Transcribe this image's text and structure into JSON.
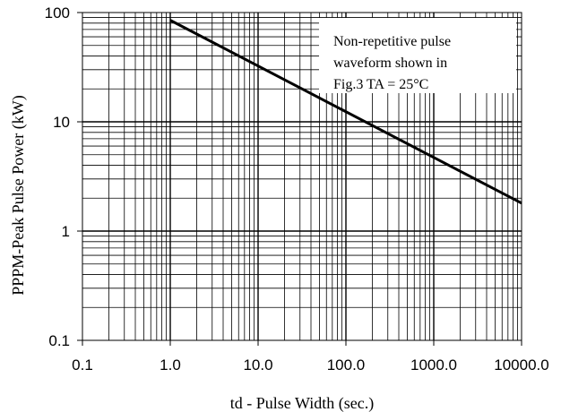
{
  "chart_data": {
    "type": "line",
    "xlabel": "td - Pulse Width (sec.)",
    "ylabel": "PPPM-Peak Pulse Power (kW)",
    "x_scale": "log",
    "y_scale": "log",
    "xlim": [
      0.1,
      10000
    ],
    "ylim": [
      0.1,
      100
    ],
    "grid": true,
    "x_ticks": [
      "0.1",
      "1.0",
      "10.0",
      "100.0",
      "1000.0",
      "10000.0"
    ],
    "y_ticks": [
      "0.1",
      "1",
      "10",
      "100"
    ],
    "annotation": [
      "Non-repetitive pulse",
      "waveform shown in",
      "Fig.3 TA = 25°C"
    ],
    "annotation_placement": "top-right",
    "series": [
      {
        "x": [
          1,
          10000
        ],
        "y": [
          85,
          1.8
        ]
      }
    ],
    "line_color": "#000000"
  }
}
